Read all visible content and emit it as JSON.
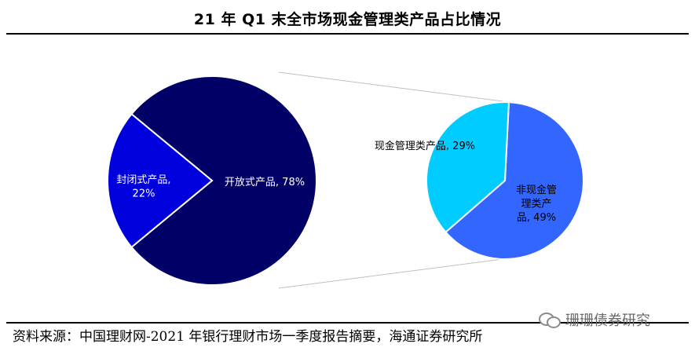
{
  "title": "21 年 Q1 末全市场现金管理类产品占比情况",
  "source": "资料来源：中国理财网-2021 年银行理财市场一季度报告摘要，海通证券研究所",
  "watermark": "珊珊债券研究",
  "colors": {
    "closed": "#0000dd",
    "open": "#000066",
    "cash": "#00ccff",
    "noncash": "#3366ff",
    "connector": "#c0c0c0"
  },
  "chart_data": [
    {
      "type": "pie",
      "title": "",
      "slices": [
        {
          "label": "开放式产品",
          "value": 78,
          "display": "开放式产品, 78%"
        },
        {
          "label": "封闭式产品",
          "value": 22,
          "display": [
            "封闭式产品,",
            "22%"
          ]
        }
      ]
    },
    {
      "type": "pie",
      "title": "",
      "slices": [
        {
          "label": "现金管理类产品",
          "value": 29,
          "display": "现金管理类产品, 29%"
        },
        {
          "label": "非现金管理类产品",
          "value": 49,
          "display": [
            "非现金管",
            "理类产",
            "品, 49%"
          ]
        }
      ]
    }
  ]
}
